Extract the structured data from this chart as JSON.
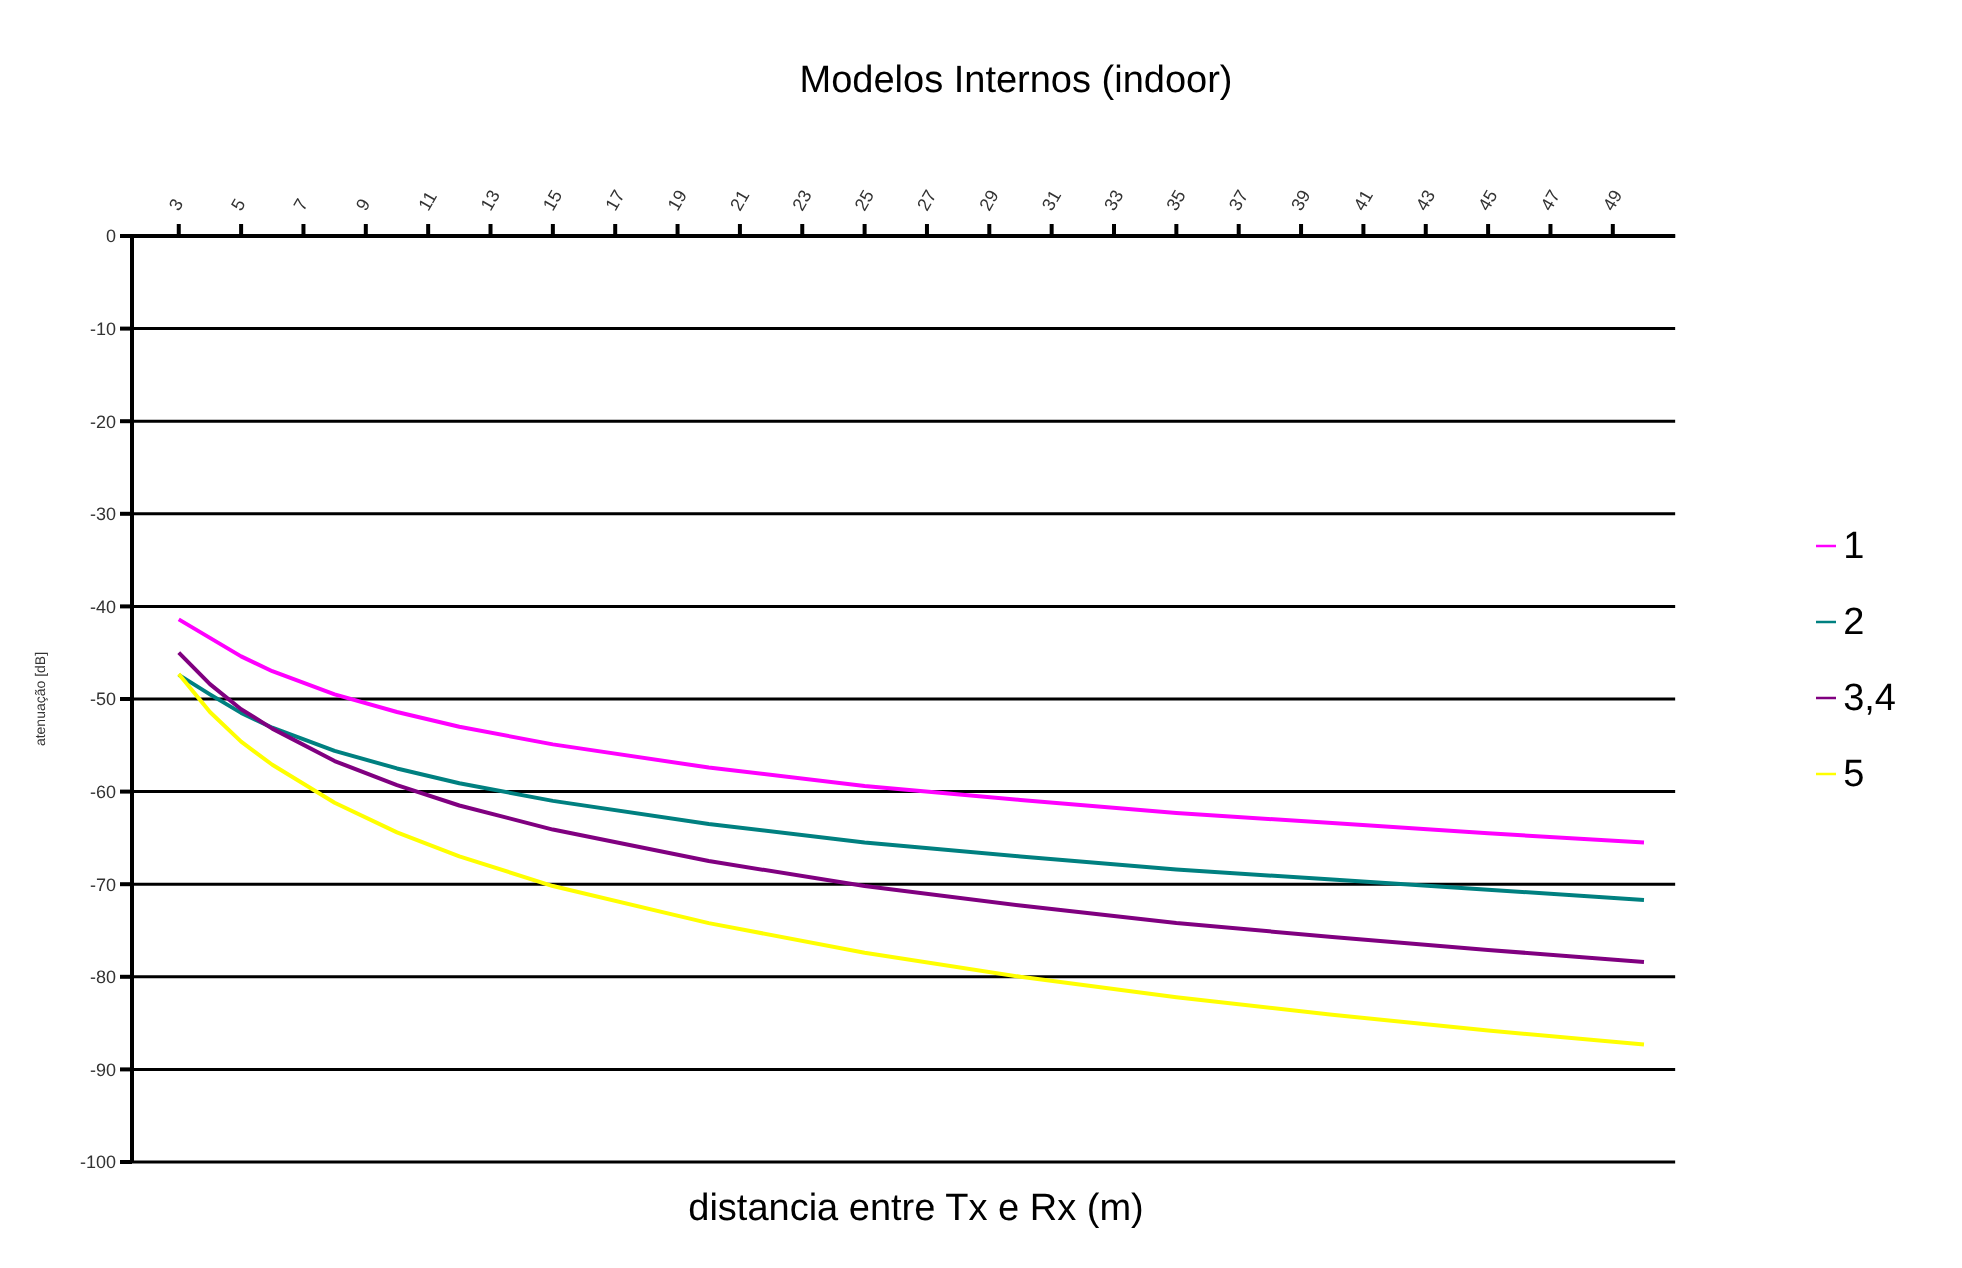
{
  "chart_data": {
    "type": "line",
    "title": "Modelos Internos (indoor)",
    "xlabel": "distancia entre Tx e Rx (m)",
    "ylabel": "atenuação [dB]",
    "x": [
      3,
      4,
      5,
      6,
      8,
      10,
      12,
      15,
      20,
      25,
      30,
      35,
      40,
      45,
      50
    ],
    "xlim": [
      1.5,
      51
    ],
    "xticks": [
      3,
      5,
      7,
      9,
      11,
      13,
      15,
      17,
      19,
      21,
      23,
      25,
      27,
      29,
      31,
      33,
      35,
      37,
      39,
      41,
      43,
      45,
      47,
      49
    ],
    "ylim": [
      -100,
      0
    ],
    "yticks": [
      -100,
      -90,
      -80,
      -70,
      -60,
      -50,
      -40,
      -30,
      -20,
      -10,
      0
    ],
    "series": [
      {
        "name": "1",
        "color": "#ff00ff",
        "values": [
          -41.4,
          -43.4,
          -45.4,
          -47,
          -49.5,
          -51.4,
          -53,
          -54.9,
          -57.4,
          -59.4,
          -60.9,
          -62.3,
          -63.4,
          -64.5,
          -65.5
        ]
      },
      {
        "name": "2",
        "color": "#008080",
        "values": [
          -47.4,
          -49.5,
          -51.5,
          -53.1,
          -55.6,
          -57.5,
          -59.1,
          -61,
          -63.5,
          -65.5,
          -67,
          -68.4,
          -69.5,
          -70.6,
          -71.7
        ]
      },
      {
        "name": "3,4",
        "color": "#800080",
        "values": [
          -45,
          -48.4,
          -51.1,
          -53.2,
          -56.7,
          -59.3,
          -61.5,
          -64.1,
          -67.5,
          -70.2,
          -72.3,
          -74.2,
          -75.7,
          -77.1,
          -78.4
        ]
      },
      {
        "name": "5",
        "color": "#ffff00",
        "values": [
          -47.3,
          -51.4,
          -54.6,
          -57.1,
          -61.2,
          -64.4,
          -67,
          -70.2,
          -74.2,
          -77.4,
          -80,
          -82.2,
          -84.1,
          -85.8,
          -87.3
        ]
      }
    ],
    "grid": "y",
    "legend": "right",
    "marker": "none",
    "line_style": "solid"
  }
}
